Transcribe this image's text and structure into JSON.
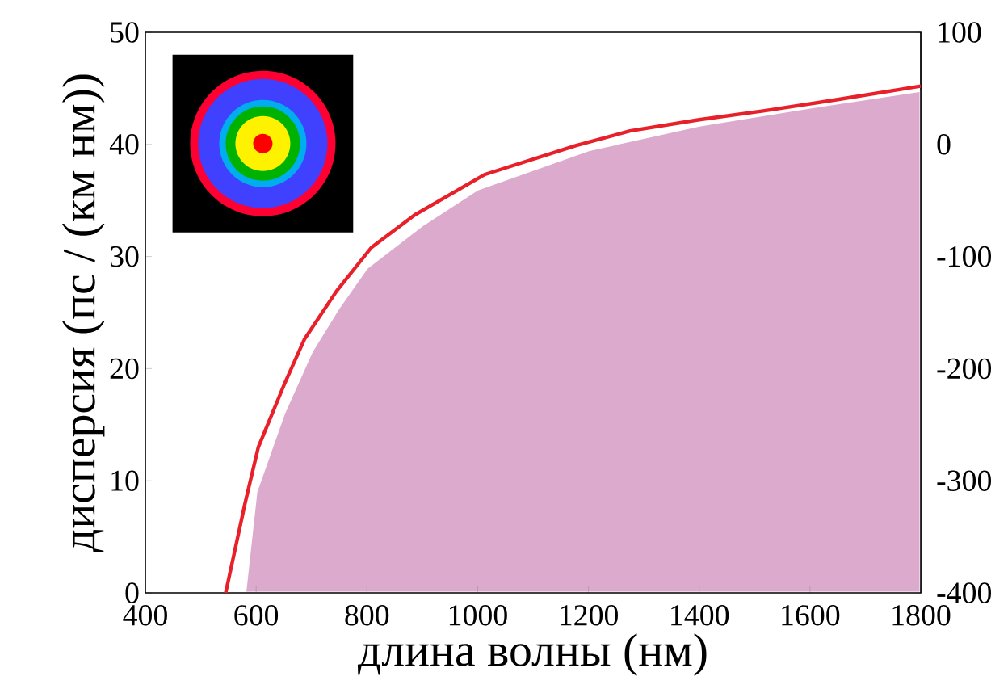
{
  "chart_data": {
    "type": "line",
    "xlabel": "длина волны (нм)",
    "ylabel": "дисперсия (пс / (км нм))",
    "xlim": [
      400,
      1800
    ],
    "ylim": [
      0,
      50
    ],
    "y2lim": [
      -400,
      100
    ],
    "xticks": [
      400,
      600,
      800,
      1000,
      1200,
      1400,
      1600,
      1800
    ],
    "yticks": [
      0,
      10,
      20,
      30,
      40,
      50
    ],
    "y2ticks": [
      -400,
      -300,
      -200,
      -100,
      0,
      100
    ],
    "series": [
      {
        "type": "area",
        "axis": "y2",
        "color": "#dcaacc",
        "x": [
          580,
          600,
          650,
          700,
          750,
          800,
          900,
          1000,
          1200,
          1400,
          1600,
          1800,
          1800
        ],
        "values": [
          -400,
          -310,
          -240,
          -185,
          -145,
          -110,
          -72,
          -40,
          -5,
          17,
          33,
          48,
          -400
        ]
      },
      {
        "color": "#e8202a",
        "x": [
          545,
          580,
          604,
          650,
          687,
          745,
          808,
          886,
          1012,
          1178,
          1275,
          1400,
          1518,
          1650,
          1800
        ],
        "values": [
          0,
          8,
          13,
          18.5,
          22.6,
          26.9,
          30.8,
          33.7,
          37.3,
          39.9,
          41.2,
          42.2,
          43,
          44,
          45.2
        ]
      }
    ]
  }
}
